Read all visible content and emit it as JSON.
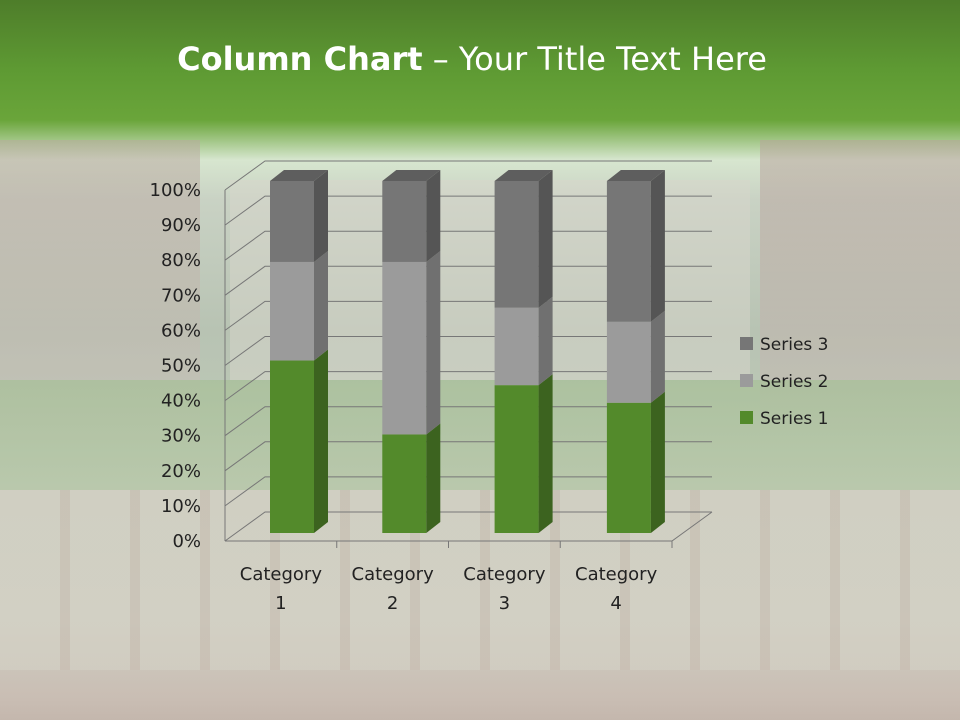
{
  "slide": {
    "title_bold": "Column Chart",
    "title_rest": " – Your Title Text Here"
  },
  "chart_data": {
    "type": "bar",
    "stacking": "percent",
    "three_d": true,
    "categories": [
      "Category 1",
      "Category 2",
      "Category 3",
      "Category 4"
    ],
    "series": [
      {
        "name": "Series 1",
        "values": [
          49,
          28,
          42,
          37
        ],
        "color": "#538a2b"
      },
      {
        "name": "Series 2",
        "values": [
          28,
          49,
          22,
          23
        ],
        "color": "#9b9b9b"
      },
      {
        "name": "Series 3",
        "values": [
          23,
          23,
          36,
          40
        ],
        "color": "#767676"
      }
    ],
    "yticks": [
      "0%",
      "10%",
      "20%",
      "30%",
      "40%",
      "50%",
      "60%",
      "70%",
      "80%",
      "90%",
      "100%"
    ],
    "ylim": [
      0,
      100
    ],
    "grid": true,
    "legend": "right"
  }
}
